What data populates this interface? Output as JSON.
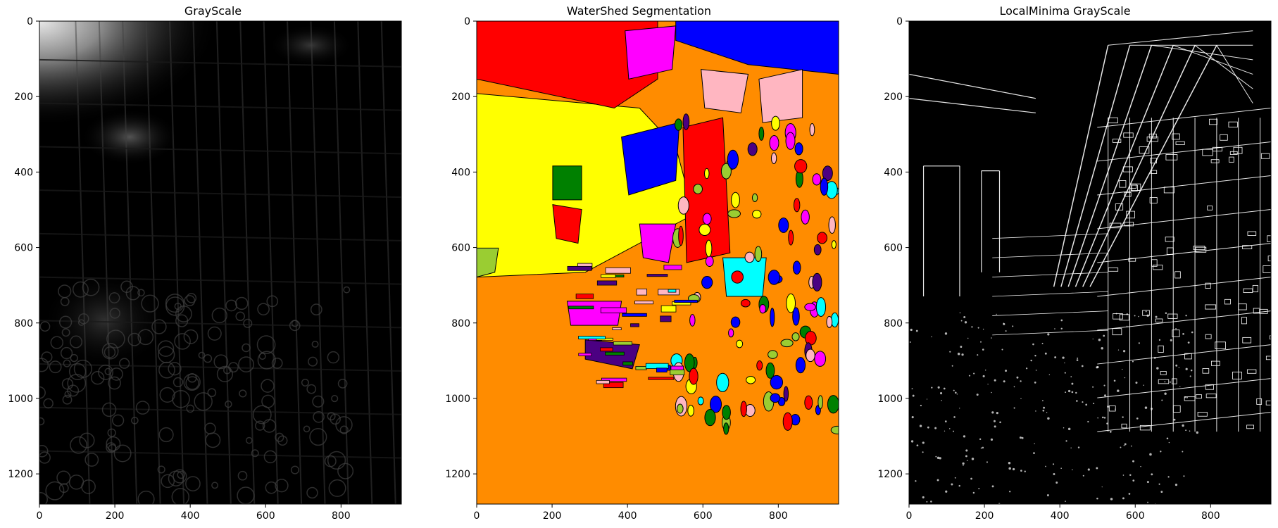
{
  "figure": {
    "panels": [
      {
        "title": "GrayScale",
        "kind": "grayscale",
        "x_ticks": [
          "0",
          "200",
          "400",
          "600",
          "800"
        ],
        "y_ticks": [
          "0",
          "200",
          "400",
          "600",
          "800",
          "1000",
          "1200"
        ]
      },
      {
        "title": "WaterShed Segmentation",
        "kind": "segmentation",
        "x_ticks": [
          "0",
          "200",
          "400",
          "600",
          "800"
        ],
        "y_ticks": [
          "0",
          "200",
          "400",
          "600",
          "800",
          "1000",
          "1200"
        ]
      },
      {
        "title": "LocalMinima GrayScale",
        "kind": "edges",
        "x_ticks": [
          "0",
          "200",
          "400",
          "600",
          "800"
        ],
        "y_ticks": [
          "0",
          "200",
          "400",
          "600",
          "800",
          "1000",
          "1200"
        ]
      }
    ],
    "image_extent": {
      "width": 960,
      "height": 1280
    },
    "segmentation_colors": [
      "#ff8c00",
      "#ffff00",
      "#ff0000",
      "#0000ff",
      "#008000",
      "#ff00ff",
      "#00ffff",
      "#9acd32",
      "#ffb6c1",
      "#4b0082"
    ],
    "grayscale_colors": [
      "#000000",
      "#1a1a1a",
      "#404040",
      "#8a8a8a",
      "#e8e8e8"
    ],
    "edge_colors": [
      "#000000",
      "#ffffff"
    ]
  }
}
